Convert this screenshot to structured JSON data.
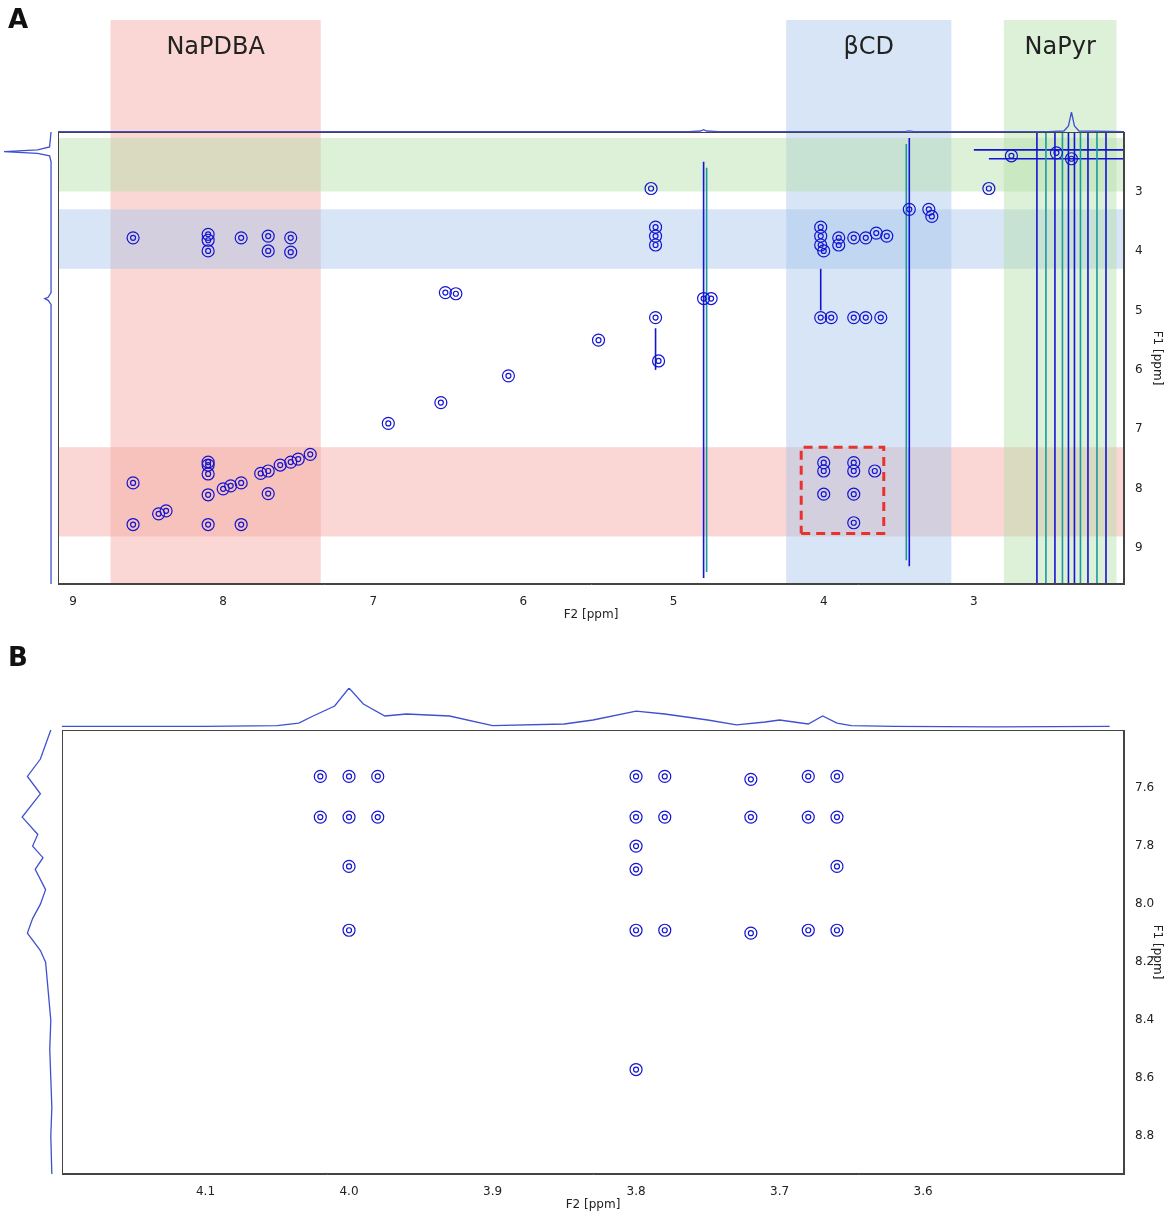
{
  "chart_data": [
    {
      "type": "scatter",
      "panel_label": "A",
      "x_label": "F2 [ppm]",
      "y_label": "F1 [ppm]",
      "xlim": [
        9.1,
        2.0
      ],
      "xticks": [
        9,
        8,
        7,
        6,
        5,
        4,
        3
      ],
      "ylim": [
        9.6,
        2.0
      ],
      "yticks": [
        3,
        4,
        5,
        6,
        7,
        8,
        9
      ],
      "grid": false,
      "color": "#1414d2",
      "regions": [
        {
          "label": "NaPDBA",
          "color": "#f4a6a0",
          "xrange": [
            8.75,
            7.35
          ],
          "yrange": [
            8.8,
            7.3
          ]
        },
        {
          "label": "βCD",
          "color": "#a6c6ea",
          "xrange": [
            4.25,
            3.15
          ],
          "yrange": [
            4.3,
            3.3
          ]
        },
        {
          "label": "NaPyr",
          "color": "#b3dea8",
          "xrange": [
            2.8,
            2.05
          ],
          "yrange": [
            3.0,
            2.1
          ]
        }
      ],
      "peaks": [
        [
          8.6,
          8.6
        ],
        [
          8.43,
          8.42
        ],
        [
          8.38,
          8.37
        ],
        [
          8.1,
          8.1
        ],
        [
          8.0,
          8.0
        ],
        [
          7.95,
          7.95
        ],
        [
          7.88,
          7.9
        ],
        [
          7.75,
          7.74
        ],
        [
          7.7,
          7.7
        ],
        [
          7.62,
          7.6
        ],
        [
          7.55,
          7.55
        ],
        [
          7.5,
          7.5
        ],
        [
          7.42,
          7.42
        ],
        [
          8.6,
          7.9
        ],
        [
          8.1,
          7.55
        ],
        [
          8.1,
          7.75
        ],
        [
          8.1,
          8.6
        ],
        [
          7.88,
          8.6
        ],
        [
          7.7,
          8.08
        ],
        [
          8.1,
          7.6
        ],
        [
          8.6,
          3.78
        ],
        [
          8.1,
          3.72
        ],
        [
          8.1,
          3.82
        ],
        [
          8.1,
          4.0
        ],
        [
          7.88,
          3.78
        ],
        [
          7.7,
          3.75
        ],
        [
          7.7,
          4.0
        ],
        [
          7.55,
          3.78
        ],
        [
          7.55,
          4.02
        ],
        [
          6.9,
          6.9
        ],
        [
          6.55,
          6.55
        ],
        [
          6.1,
          6.1
        ],
        [
          5.5,
          5.5
        ],
        [
          6.52,
          4.7
        ],
        [
          6.45,
          4.72
        ],
        [
          5.12,
          3.6
        ],
        [
          5.12,
          3.75
        ],
        [
          5.12,
          3.9
        ],
        [
          5.12,
          5.12
        ],
        [
          5.1,
          5.85
        ],
        [
          5.15,
          2.95
        ],
        [
          4.8,
          4.8
        ],
        [
          4.75,
          4.8
        ],
        [
          4.02,
          3.6
        ],
        [
          4.02,
          3.75
        ],
        [
          4.02,
          3.9
        ],
        [
          4.0,
          4.0
        ],
        [
          3.9,
          3.78
        ],
        [
          3.8,
          3.78
        ],
        [
          3.72,
          3.78
        ],
        [
          3.65,
          3.7
        ],
        [
          3.58,
          3.75
        ],
        [
          3.9,
          3.9
        ],
        [
          3.43,
          3.3
        ],
        [
          3.3,
          3.3
        ],
        [
          3.28,
          3.42
        ],
        [
          4.02,
          5.12
        ],
        [
          3.95,
          5.12
        ],
        [
          3.8,
          5.12
        ],
        [
          3.72,
          5.12
        ],
        [
          3.62,
          5.12
        ],
        [
          4.0,
          7.56
        ],
        [
          4.0,
          7.7
        ],
        [
          3.8,
          7.56
        ],
        [
          3.8,
          7.7
        ],
        [
          3.8,
          8.09
        ],
        [
          4.0,
          8.09
        ],
        [
          3.8,
          8.57
        ],
        [
          3.66,
          7.7
        ],
        [
          2.9,
          2.95
        ],
        [
          2.75,
          2.4
        ],
        [
          2.45,
          2.35
        ],
        [
          2.35,
          2.45
        ]
      ],
      "streaks": [
        {
          "x": 4.8,
          "y": [
            9.5,
            2.5
          ],
          "color": "#1414d2"
        },
        {
          "x": 4.78,
          "y": [
            9.4,
            2.6
          ],
          "color": "#1a9aa0"
        },
        {
          "x": 3.43,
          "y": [
            9.3,
            2.1
          ],
          "color": "#1414d2"
        },
        {
          "x": 3.45,
          "y": [
            9.2,
            2.2
          ],
          "color": "#1a9aa0"
        },
        {
          "x": 5.12,
          "y": [
            6.0,
            5.3
          ],
          "color": "#1414d2"
        },
        {
          "x": 4.02,
          "y": [
            5.0,
            4.3
          ],
          "color": "#1414d2"
        },
        {
          "x": 2.12,
          "y": [
            9.6,
            2.0
          ],
          "color": "#1414d2"
        },
        {
          "x": 2.18,
          "y": [
            9.6,
            2.0
          ],
          "color": "#1a9aa0"
        },
        {
          "x": 2.24,
          "y": [
            9.6,
            2.0
          ],
          "color": "#1414d2"
        },
        {
          "x": 2.29,
          "y": [
            9.6,
            2.0
          ],
          "color": "#1a9aa0"
        },
        {
          "x": 2.33,
          "y": [
            9.6,
            2.0
          ],
          "color": "#1414d2"
        },
        {
          "x": 2.37,
          "y": [
            9.6,
            2.0
          ],
          "color": "#1414d2"
        },
        {
          "x": 2.41,
          "y": [
            9.6,
            2.0
          ],
          "color": "#1a9aa0"
        },
        {
          "x": 2.46,
          "y": [
            9.6,
            2.0
          ],
          "color": "#1414d2"
        },
        {
          "x": 2.52,
          "y": [
            9.6,
            2.0
          ],
          "color": "#1a9aa0"
        },
        {
          "x": 2.58,
          "y": [
            9.6,
            2.0
          ],
          "color": "#1414d2"
        }
      ],
      "h_streaks": [
        {
          "y": 2.3,
          "x": [
            3.0,
            2.0
          ],
          "color": "#1414d2"
        },
        {
          "y": 2.45,
          "x": [
            2.9,
            2.0
          ],
          "color": "#1414d2"
        }
      ],
      "highlight_box": {
        "x": [
          4.15,
          3.6
        ],
        "y": [
          8.75,
          7.3
        ],
        "color": "#e8322c",
        "line_style": "dashed"
      },
      "projection_top": {
        "x": [
          9.1,
          4.9,
          4.82,
          4.8,
          4.78,
          4.7,
          3.46,
          3.43,
          3.4,
          2.5,
          2.4,
          2.37,
          2.35,
          2.33,
          2.3,
          2.0
        ],
        "values": [
          0.02,
          0.02,
          0.05,
          0.12,
          0.05,
          0.02,
          0.02,
          0.06,
          0.02,
          0.02,
          0.05,
          0.3,
          1.0,
          0.3,
          0.05,
          0.02
        ],
        "ylim": [
          0,
          1
        ],
        "color": "#4050d0"
      },
      "projection_left": {
        "y": [
          2.0,
          2.25,
          2.3,
          2.33,
          2.36,
          2.4,
          2.5,
          4.7,
          4.78,
          4.8,
          4.83,
          4.9,
          9.6
        ],
        "values": [
          0.02,
          0.05,
          0.3,
          1.0,
          0.3,
          0.05,
          0.02,
          0.02,
          0.08,
          0.15,
          0.08,
          0.02,
          0.02
        ],
        "xlim": [
          1,
          0
        ],
        "color": "#4050d0"
      }
    },
    {
      "type": "scatter",
      "panel_label": "B",
      "x_label": "F2 [ppm]",
      "y_label": "F1 [ppm]",
      "xlim": [
        4.2,
        3.46
      ],
      "xticks": [
        4.1,
        {
          "value": 4,
          "label": "4.0"
        },
        3.9,
        3.8,
        3.7,
        3.6
      ],
      "ylim": [
        8.93,
        7.4
      ],
      "yticks": [
        7.6,
        7.8,
        {
          "value": 8,
          "label": "8.0"
        },
        8.2,
        8.4,
        8.6,
        8.8
      ],
      "grid": false,
      "color": "#1414d2",
      "peaks": [
        [
          4.02,
          7.56
        ],
        [
          4.0,
          7.56
        ],
        [
          3.98,
          7.56
        ],
        [
          4.02,
          7.7
        ],
        [
          4.0,
          7.7
        ],
        [
          3.98,
          7.7
        ],
        [
          4.0,
          7.87
        ],
        [
          4.0,
          8.09
        ],
        [
          3.8,
          7.56
        ],
        [
          3.78,
          7.56
        ],
        [
          3.72,
          7.57
        ],
        [
          3.68,
          7.56
        ],
        [
          3.66,
          7.56
        ],
        [
          3.8,
          7.7
        ],
        [
          3.78,
          7.7
        ],
        [
          3.72,
          7.7
        ],
        [
          3.68,
          7.7
        ],
        [
          3.66,
          7.7
        ],
        [
          3.8,
          7.8
        ],
        [
          3.8,
          7.88
        ],
        [
          3.66,
          7.87
        ],
        [
          3.8,
          8.09
        ],
        [
          3.78,
          8.09
        ],
        [
          3.72,
          8.1
        ],
        [
          3.68,
          8.09
        ],
        [
          3.66,
          8.09
        ],
        [
          3.8,
          8.57
        ]
      ],
      "projection_top": {
        "x": [
          4.2,
          4.1,
          4.05,
          4.035,
          4.025,
          4.01,
          4.0,
          3.99,
          3.975,
          3.96,
          3.93,
          3.9,
          3.85,
          3.83,
          3.8,
          3.78,
          3.75,
          3.73,
          3.71,
          3.7,
          3.68,
          3.67,
          3.66,
          3.65,
          3.62,
          3.55,
          3.47
        ],
        "values": [
          0.04,
          0.04,
          0.06,
          0.12,
          0.3,
          0.55,
          1.0,
          0.6,
          0.3,
          0.35,
          0.3,
          0.06,
          0.1,
          0.2,
          0.42,
          0.35,
          0.2,
          0.08,
          0.15,
          0.2,
          0.1,
          0.3,
          0.12,
          0.06,
          0.04,
          0.03,
          0.04
        ],
        "ylim": [
          0,
          1
        ],
        "color": "#4050d0"
      },
      "projection_left": {
        "y": [
          7.4,
          7.5,
          7.56,
          7.62,
          7.7,
          7.76,
          7.8,
          7.84,
          7.88,
          7.95,
          8.0,
          8.05,
          8.1,
          8.16,
          8.2,
          8.3,
          8.4,
          8.5,
          8.6,
          8.7,
          8.8,
          8.93
        ],
        "values": [
          0.1,
          0.3,
          0.55,
          0.3,
          0.65,
          0.35,
          0.45,
          0.25,
          0.4,
          0.2,
          0.3,
          0.45,
          0.55,
          0.3,
          0.2,
          0.15,
          0.1,
          0.12,
          0.1,
          0.08,
          0.1,
          0.08
        ],
        "xlim": [
          1,
          0
        ],
        "color": "#4050d0"
      }
    }
  ]
}
